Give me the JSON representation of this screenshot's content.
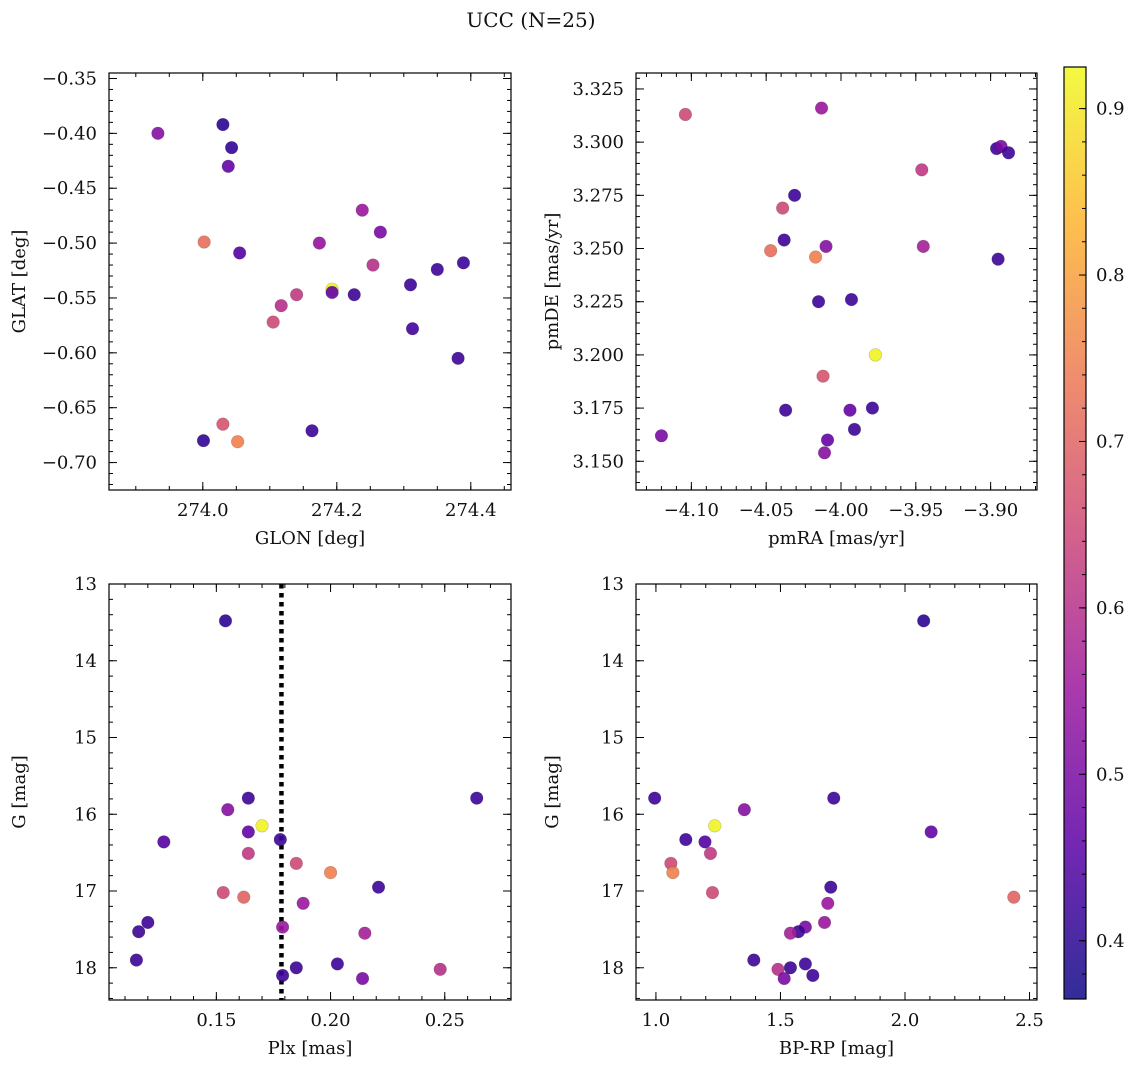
{
  "title": "UCC (N=25)",
  "colormap": {
    "name": "plasma",
    "range": [
      0.365,
      0.925
    ],
    "ticks": [
      0.4,
      0.5,
      0.6,
      0.7,
      0.8,
      0.9
    ],
    "tick_labels": [
      "0.4",
      "0.5",
      "0.6",
      "0.7",
      "0.8",
      "0.9"
    ],
    "stops": [
      "#0d0887",
      "#5c01a6",
      "#9c179e",
      "#cc4778",
      "#ed7953",
      "#fdb42f",
      "#f0f921"
    ]
  },
  "chart_data": [
    {
      "type": "scatter",
      "name": "glon-glat",
      "xlabel": "GLON [deg]",
      "ylabel": "GLAT [deg]",
      "xlim": [
        273.86,
        274.46
      ],
      "ylim": [
        -0.725,
        -0.345
      ],
      "invert_y": false,
      "xticks": [
        274.0,
        274.2,
        274.4
      ],
      "xtick_labels": [
        "274.0",
        "274.2",
        "274.4"
      ],
      "yticks": [
        -0.35,
        -0.4,
        -0.45,
        -0.5,
        -0.55,
        -0.6,
        -0.65,
        -0.7
      ],
      "ytick_labels": [
        "−0.35",
        "−0.40",
        "−0.45",
        "−0.50",
        "−0.55",
        "−0.60",
        "−0.65",
        "−0.70"
      ],
      "xminor": 0.05,
      "yminor": 0.01,
      "points": [
        {
          "x": 273.933,
          "y": -0.4,
          "c": 0.52
        },
        {
          "x": 274.03,
          "y": -0.392,
          "c": 0.4
        },
        {
          "x": 274.043,
          "y": -0.413,
          "c": 0.41
        },
        {
          "x": 274.038,
          "y": -0.43,
          "c": 0.47
        },
        {
          "x": 274.002,
          "y": -0.499,
          "c": 0.72
        },
        {
          "x": 274.055,
          "y": -0.509,
          "c": 0.45
        },
        {
          "x": 274.193,
          "y": -0.542,
          "c": 0.92
        },
        {
          "x": 274.193,
          "y": -0.545,
          "c": 0.47
        },
        {
          "x": 274.226,
          "y": -0.547,
          "c": 0.42
        },
        {
          "x": 274.14,
          "y": -0.547,
          "c": 0.62
        },
        {
          "x": 274.117,
          "y": -0.557,
          "c": 0.6
        },
        {
          "x": 274.105,
          "y": -0.572,
          "c": 0.65
        },
        {
          "x": 274.174,
          "y": -0.5,
          "c": 0.54
        },
        {
          "x": 274.238,
          "y": -0.47,
          "c": 0.55
        },
        {
          "x": 274.265,
          "y": -0.49,
          "c": 0.5
        },
        {
          "x": 274.254,
          "y": -0.52,
          "c": 0.6
        },
        {
          "x": 274.31,
          "y": -0.538,
          "c": 0.42
        },
        {
          "x": 274.35,
          "y": -0.524,
          "c": 0.42
        },
        {
          "x": 274.389,
          "y": -0.518,
          "c": 0.42
        },
        {
          "x": 274.313,
          "y": -0.578,
          "c": 0.43
        },
        {
          "x": 274.381,
          "y": -0.605,
          "c": 0.42
        },
        {
          "x": 274.001,
          "y": -0.68,
          "c": 0.41
        },
        {
          "x": 274.03,
          "y": -0.665,
          "c": 0.67
        },
        {
          "x": 274.052,
          "y": -0.681,
          "c": 0.75
        },
        {
          "x": 274.163,
          "y": -0.671,
          "c": 0.42
        }
      ]
    },
    {
      "type": "scatter",
      "name": "pmra-pmde",
      "xlabel": "pmRA [mas/yr]",
      "ylabel": "pmDE [mas/yr]",
      "xlim": [
        -4.137,
        -3.869
      ],
      "ylim": [
        3.1365,
        3.3325
      ],
      "invert_y": false,
      "xticks": [
        -4.1,
        -4.05,
        -4.0,
        -3.95,
        -3.9
      ],
      "xtick_labels": [
        "−4.10",
        "−4.05",
        "−4.00",
        "−3.95",
        "−3.90"
      ],
      "yticks": [
        3.15,
        3.175,
        3.2,
        3.225,
        3.25,
        3.275,
        3.3,
        3.325
      ],
      "ytick_labels": [
        "3.150",
        "3.175",
        "3.200",
        "3.225",
        "3.250",
        "3.275",
        "3.300",
        "3.325"
      ],
      "xminor": 0.01,
      "yminor": 0.005,
      "points": [
        {
          "x": -4.104,
          "y": 3.313,
          "c": 0.65
        },
        {
          "x": -4.013,
          "y": 3.316,
          "c": 0.55
        },
        {
          "x": -3.896,
          "y": 3.297,
          "c": 0.42
        },
        {
          "x": -3.893,
          "y": 3.298,
          "c": 0.5
        },
        {
          "x": -3.888,
          "y": 3.295,
          "c": 0.42
        },
        {
          "x": -3.946,
          "y": 3.287,
          "c": 0.62
        },
        {
          "x": -4.031,
          "y": 3.275,
          "c": 0.42
        },
        {
          "x": -4.039,
          "y": 3.269,
          "c": 0.65
        },
        {
          "x": -4.038,
          "y": 3.254,
          "c": 0.42
        },
        {
          "x": -4.047,
          "y": 3.249,
          "c": 0.72
        },
        {
          "x": -4.01,
          "y": 3.251,
          "c": 0.52
        },
        {
          "x": -4.017,
          "y": 3.246,
          "c": 0.75
        },
        {
          "x": -3.945,
          "y": 3.251,
          "c": 0.57
        },
        {
          "x": -3.895,
          "y": 3.245,
          "c": 0.42
        },
        {
          "x": -4.015,
          "y": 3.225,
          "c": 0.42
        },
        {
          "x": -3.993,
          "y": 3.226,
          "c": 0.42
        },
        {
          "x": -3.977,
          "y": 3.2,
          "c": 0.92
        },
        {
          "x": -4.012,
          "y": 3.19,
          "c": 0.67
        },
        {
          "x": -4.037,
          "y": 3.174,
          "c": 0.42
        },
        {
          "x": -3.994,
          "y": 3.174,
          "c": 0.47
        },
        {
          "x": -3.979,
          "y": 3.175,
          "c": 0.42
        },
        {
          "x": -3.991,
          "y": 3.165,
          "c": 0.42
        },
        {
          "x": -4.009,
          "y": 3.16,
          "c": 0.47
        },
        {
          "x": -4.011,
          "y": 3.154,
          "c": 0.52
        },
        {
          "x": -4.12,
          "y": 3.162,
          "c": 0.5
        }
      ]
    },
    {
      "type": "scatter",
      "name": "plx-g",
      "xlabel": "Plx [mas]",
      "ylabel": "G [mag]",
      "xlim": [
        0.103,
        0.279
      ],
      "ylim": [
        13.0,
        18.42
      ],
      "invert_y": true,
      "xticks": [
        0.15,
        0.2,
        0.25
      ],
      "xtick_labels": [
        "0.15",
        "0.20",
        "0.25"
      ],
      "yticks": [
        13,
        14,
        15,
        16,
        17,
        18
      ],
      "ytick_labels": [
        "13",
        "14",
        "15",
        "16",
        "17",
        "18"
      ],
      "xminor": 0.01,
      "yminor": 0.2,
      "vline": {
        "x": 0.1785,
        "style": "dotted"
      },
      "points": [
        {
          "x": 0.154,
          "y": 13.48,
          "c": 0.4
        },
        {
          "x": 0.155,
          "y": 15.94,
          "c": 0.52
        },
        {
          "x": 0.164,
          "y": 15.79,
          "c": 0.42
        },
        {
          "x": 0.17,
          "y": 16.15,
          "c": 0.92
        },
        {
          "x": 0.164,
          "y": 16.23,
          "c": 0.47
        },
        {
          "x": 0.164,
          "y": 16.51,
          "c": 0.62
        },
        {
          "x": 0.127,
          "y": 16.36,
          "c": 0.45
        },
        {
          "x": 0.178,
          "y": 16.33,
          "c": 0.42
        },
        {
          "x": 0.185,
          "y": 16.64,
          "c": 0.65
        },
        {
          "x": 0.2,
          "y": 16.76,
          "c": 0.75
        },
        {
          "x": 0.153,
          "y": 17.02,
          "c": 0.65
        },
        {
          "x": 0.162,
          "y": 17.08,
          "c": 0.7
        },
        {
          "x": 0.188,
          "y": 17.16,
          "c": 0.55
        },
        {
          "x": 0.221,
          "y": 16.95,
          "c": 0.42
        },
        {
          "x": 0.264,
          "y": 15.79,
          "c": 0.42
        },
        {
          "x": 0.12,
          "y": 17.41,
          "c": 0.42
        },
        {
          "x": 0.116,
          "y": 17.53,
          "c": 0.42
        },
        {
          "x": 0.179,
          "y": 17.47,
          "c": 0.55
        },
        {
          "x": 0.215,
          "y": 17.55,
          "c": 0.57
        },
        {
          "x": 0.115,
          "y": 17.9,
          "c": 0.42
        },
        {
          "x": 0.185,
          "y": 18.0,
          "c": 0.42
        },
        {
          "x": 0.203,
          "y": 17.95,
          "c": 0.42
        },
        {
          "x": 0.179,
          "y": 18.1,
          "c": 0.42
        },
        {
          "x": 0.214,
          "y": 18.14,
          "c": 0.5
        },
        {
          "x": 0.248,
          "y": 18.02,
          "c": 0.6
        }
      ]
    },
    {
      "type": "scatter",
      "name": "bprp-g",
      "xlabel": "BP-RP [mag]",
      "ylabel": "G [mag]",
      "xlim": [
        0.92,
        2.53
      ],
      "ylim": [
        13.0,
        18.42
      ],
      "invert_y": true,
      "xticks": [
        1.0,
        1.5,
        2.0,
        2.5
      ],
      "xtick_labels": [
        "1.0",
        "1.5",
        "2.0",
        "2.5"
      ],
      "yticks": [
        13,
        14,
        15,
        16,
        17,
        18
      ],
      "ytick_labels": [
        "13",
        "14",
        "15",
        "16",
        "17",
        "18"
      ],
      "xminor": 0.1,
      "yminor": 0.2,
      "points": [
        {
          "x": 2.075,
          "y": 13.48,
          "c": 0.4
        },
        {
          "x": 0.995,
          "y": 15.79,
          "c": 0.42
        },
        {
          "x": 1.714,
          "y": 15.79,
          "c": 0.42
        },
        {
          "x": 1.355,
          "y": 15.94,
          "c": 0.52
        },
        {
          "x": 1.236,
          "y": 16.15,
          "c": 0.92
        },
        {
          "x": 1.12,
          "y": 16.33,
          "c": 0.42
        },
        {
          "x": 1.197,
          "y": 16.36,
          "c": 0.45
        },
        {
          "x": 2.105,
          "y": 16.23,
          "c": 0.47
        },
        {
          "x": 1.219,
          "y": 16.51,
          "c": 0.62
        },
        {
          "x": 1.06,
          "y": 16.64,
          "c": 0.65
        },
        {
          "x": 1.068,
          "y": 16.76,
          "c": 0.75
        },
        {
          "x": 1.702,
          "y": 16.95,
          "c": 0.42
        },
        {
          "x": 1.227,
          "y": 17.02,
          "c": 0.65
        },
        {
          "x": 2.437,
          "y": 17.08,
          "c": 0.7
        },
        {
          "x": 1.69,
          "y": 17.16,
          "c": 0.55
        },
        {
          "x": 1.677,
          "y": 17.41,
          "c": 0.55
        },
        {
          "x": 1.6,
          "y": 17.47,
          "c": 0.5
        },
        {
          "x": 1.572,
          "y": 17.53,
          "c": 0.42
        },
        {
          "x": 1.54,
          "y": 17.55,
          "c": 0.57
        },
        {
          "x": 1.393,
          "y": 17.9,
          "c": 0.42
        },
        {
          "x": 1.6,
          "y": 17.95,
          "c": 0.42
        },
        {
          "x": 1.54,
          "y": 18.0,
          "c": 0.42
        },
        {
          "x": 1.49,
          "y": 18.02,
          "c": 0.6
        },
        {
          "x": 1.63,
          "y": 18.1,
          "c": 0.42
        },
        {
          "x": 1.515,
          "y": 18.14,
          "c": 0.5
        }
      ]
    }
  ]
}
